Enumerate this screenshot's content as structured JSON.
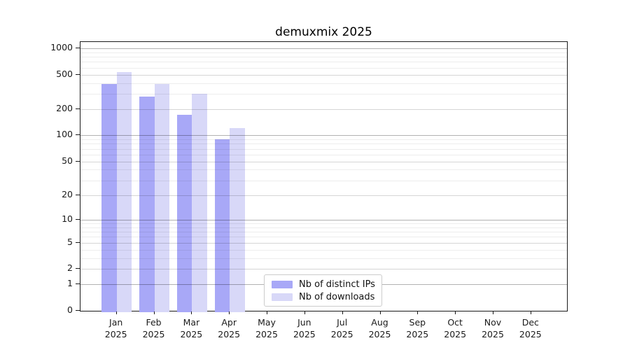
{
  "chart_data": {
    "type": "bar",
    "title": "demuxmix 2025",
    "scale": "log10(1+v)",
    "grid": "horizontal, major + log minor",
    "legend_position": "lower center",
    "categories": [
      "Jan 2025",
      "Feb 2025",
      "Mar 2025",
      "Apr 2025",
      "May 2025",
      "Jun 2025",
      "Jul 2025",
      "Aug 2025",
      "Sep 2025",
      "Oct 2025",
      "Nov 2025",
      "Dec 2025"
    ],
    "series": [
      {
        "name": "Nb of distinct IPs",
        "color": "#a8a8f7",
        "values": [
          390,
          280,
          173,
          91,
          null,
          null,
          null,
          null,
          null,
          null,
          null,
          null
        ]
      },
      {
        "name": "Nb of downloads",
        "color": "#d8d8f8",
        "values": [
          530,
          390,
          300,
          122,
          null,
          null,
          null,
          null,
          null,
          null,
          null,
          null
        ]
      }
    ],
    "y_ticks": [
      0,
      1,
      2,
      5,
      10,
      20,
      50,
      100,
      200,
      500,
      1000
    ],
    "y_minor_ticks": [
      3,
      4,
      6,
      7,
      8,
      9,
      30,
      40,
      60,
      70,
      80,
      90,
      300,
      400,
      600,
      700,
      800,
      900
    ],
    "ylim": [
      0,
      1180
    ],
    "xlabel": "",
    "ylabel": ""
  },
  "colors": {
    "spine": "#1a1a1a",
    "background": "#ffffff",
    "legend_border": "#cccccc"
  }
}
